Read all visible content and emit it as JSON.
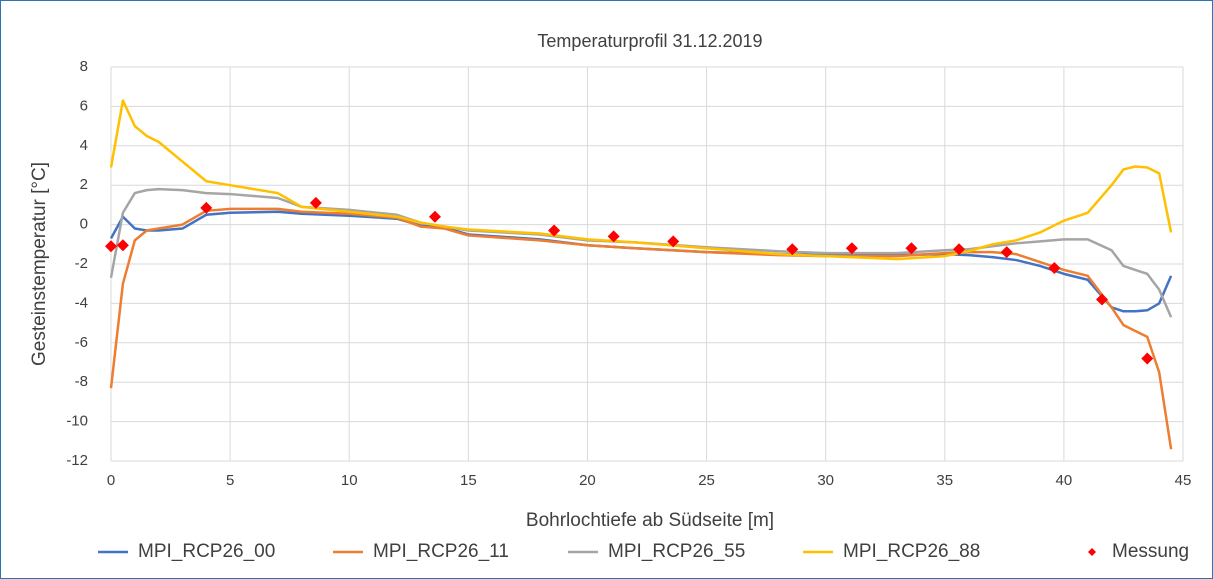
{
  "chart_data": {
    "type": "line",
    "title": "Temperaturprofil 31.12.2019",
    "x_label": "Bohrlochtiefe ab Südseite [m]",
    "y_label": "Gesteinstemperatur [°C]",
    "x": [
      0,
      0.5,
      1,
      1.5,
      2,
      3,
      4,
      5,
      7,
      8,
      10,
      12,
      13,
      14,
      15,
      18,
      20,
      22,
      25,
      28,
      30,
      33,
      35,
      36,
      37,
      38,
      39,
      40,
      41,
      42,
      42.5,
      43,
      43.5,
      44,
      44.5
    ],
    "xlim": [
      0,
      45
    ],
    "xticks": [
      0,
      5,
      10,
      15,
      20,
      25,
      30,
      35,
      40,
      45
    ],
    "ylim": [
      -12,
      8
    ],
    "yticks": [
      -12,
      -10,
      -8,
      -6,
      -4,
      -2,
      0,
      2,
      4,
      6,
      8
    ],
    "grid": true,
    "legend": "bottom",
    "series": [
      {
        "name": "MPI_RCP26_00",
        "color": "#4472c4",
        "values": [
          -0.7,
          0.4,
          -0.2,
          -0.3,
          -0.3,
          -0.2,
          0.5,
          0.6,
          0.65,
          0.55,
          0.45,
          0.3,
          -0.05,
          -0.15,
          -0.5,
          -0.75,
          -1.05,
          -1.2,
          -1.4,
          -1.5,
          -1.55,
          -1.55,
          -1.5,
          -1.55,
          -1.65,
          -1.8,
          -2.1,
          -2.5,
          -2.8,
          -4.2,
          -4.4,
          -4.4,
          -4.35,
          -4.0,
          -2.6
        ]
      },
      {
        "name": "MPI_RCP26_11",
        "color": "#ed7d31",
        "values": [
          -8.3,
          -3,
          -0.8,
          -0.3,
          -0.2,
          0,
          0.7,
          0.8,
          0.8,
          0.65,
          0.55,
          0.35,
          -0.1,
          -0.2,
          -0.55,
          -0.8,
          -1.05,
          -1.2,
          -1.4,
          -1.55,
          -1.6,
          -1.6,
          -1.45,
          -1.4,
          -1.4,
          -1.5,
          -1.9,
          -2.3,
          -2.6,
          -4.2,
          -5.1,
          -5.4,
          -5.7,
          -7.5,
          -11.4
        ]
      },
      {
        "name": "MPI_RCP26_55",
        "color": "#a5a5a5",
        "values": [
          -2.7,
          0.6,
          1.6,
          1.75,
          1.8,
          1.75,
          1.6,
          1.55,
          1.35,
          0.9,
          0.75,
          0.5,
          0.1,
          -0.1,
          -0.3,
          -0.5,
          -0.8,
          -0.9,
          -1.15,
          -1.35,
          -1.45,
          -1.45,
          -1.3,
          -1.25,
          -1.1,
          -0.95,
          -0.85,
          -0.75,
          -0.75,
          -1.3,
          -2.1,
          -2.3,
          -2.5,
          -3.3,
          -4.7
        ]
      },
      {
        "name": "MPI_RCP26_88",
        "color": "#ffc000",
        "values": [
          2.9,
          6.3,
          5.0,
          4.5,
          4.2,
          3.2,
          2.2,
          2.0,
          1.6,
          0.9,
          0.65,
          0.4,
          0.1,
          -0.1,
          -0.25,
          -0.45,
          -0.75,
          -0.9,
          -1.2,
          -1.5,
          -1.6,
          -1.75,
          -1.6,
          -1.35,
          -1.0,
          -0.8,
          -0.4,
          0.2,
          0.6,
          2.0,
          2.8,
          2.95,
          2.9,
          2.6,
          -0.4
        ]
      },
      {
        "name": "Messung",
        "type": "scatter",
        "color": "#ff0000",
        "x": [
          0,
          0.5,
          4,
          8.6,
          13.6,
          18.6,
          21.1,
          23.6,
          28.6,
          31.1,
          33.6,
          35.6,
          37.6,
          39.6,
          41.6,
          43.5
        ],
        "values": [
          -1.1,
          -1.05,
          0.85,
          1.1,
          0.4,
          -0.3,
          -0.6,
          -0.85,
          -1.25,
          -1.2,
          -1.2,
          -1.25,
          -1.4,
          -2.2,
          -3.8,
          -6.8
        ]
      }
    ]
  }
}
